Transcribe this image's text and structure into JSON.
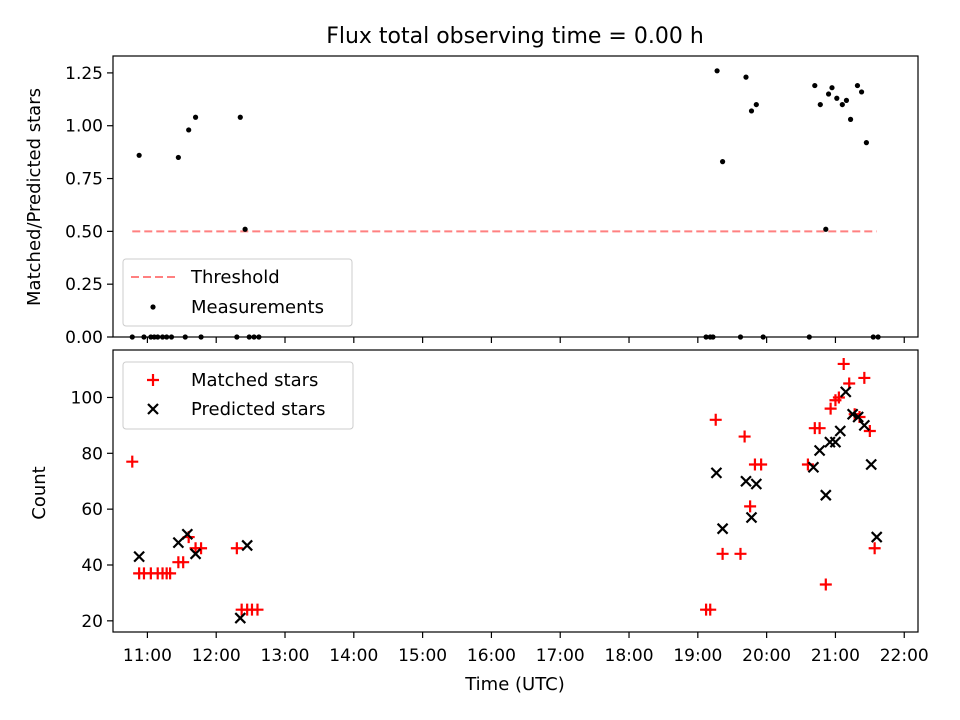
{
  "colors": {
    "threshold": "#ff8080",
    "measurement": "#000000",
    "matched": "#ff0000",
    "predicted": "#000000",
    "axis": "#000000",
    "legend_border": "#cccccc"
  },
  "chart_data": [
    {
      "type": "scatter",
      "title": "Flux total observing time = 0.00 h",
      "xlabel": "",
      "ylabel": "Matched/Predicted stars",
      "xlim": [
        10.5,
        22.2
      ],
      "ylim": [
        0,
        1.33
      ],
      "yticks": [
        0.0,
        0.25,
        0.5,
        0.75,
        1.0,
        1.25
      ],
      "ytick_labels": [
        "0.00",
        "0.25",
        "0.50",
        "0.75",
        "1.00",
        "1.25"
      ],
      "legend_position": "lower-left",
      "series": [
        {
          "name": "Threshold",
          "style": "dashed-line",
          "x": [
            10.78,
            21.6
          ],
          "y": [
            0.5,
            0.5
          ]
        },
        {
          "name": "Measurements",
          "style": "dots",
          "x": [
            10.78,
            10.88,
            10.95,
            11.05,
            11.1,
            11.15,
            11.22,
            11.28,
            11.35,
            11.45,
            11.55,
            11.6,
            11.7,
            11.78,
            12.3,
            12.35,
            12.42,
            12.48,
            12.55,
            12.62,
            19.12,
            19.18,
            19.22,
            19.28,
            19.36,
            19.62,
            19.7,
            19.78,
            19.85,
            19.95,
            20.62,
            20.7,
            20.78,
            20.86,
            20.9,
            20.95,
            21.02,
            21.1,
            21.16,
            21.22,
            21.32,
            21.38,
            21.45,
            21.55,
            21.62
          ],
          "y": [
            0.0,
            0.86,
            0.0,
            0.0,
            0.0,
            0.0,
            0.0,
            0.0,
            0.0,
            0.85,
            0.0,
            0.98,
            1.04,
            0.0,
            0.0,
            1.04,
            0.51,
            0.0,
            0.0,
            0.0,
            0.0,
            0.0,
            0.0,
            1.26,
            0.83,
            0.0,
            1.23,
            1.07,
            1.1,
            0.0,
            0.0,
            1.19,
            1.1,
            0.51,
            1.15,
            1.18,
            1.13,
            1.1,
            1.12,
            1.03,
            1.19,
            1.16,
            0.92,
            0.0,
            0.0
          ]
        }
      ]
    },
    {
      "type": "scatter",
      "title": "",
      "xlabel": "Time (UTC)",
      "ylabel": "Count",
      "xlim": [
        10.5,
        22.2
      ],
      "ylim": [
        16,
        117
      ],
      "yticks": [
        20,
        40,
        60,
        80,
        100
      ],
      "ytick_labels": [
        "20",
        "40",
        "60",
        "80",
        "100"
      ],
      "xticks": [
        11,
        12,
        13,
        14,
        15,
        16,
        17,
        18,
        19,
        20,
        21,
        22
      ],
      "xtick_labels": [
        "11:00",
        "12:00",
        "13:00",
        "14:00",
        "15:00",
        "16:00",
        "17:00",
        "18:00",
        "19:00",
        "20:00",
        "21:00",
        "22:00"
      ],
      "legend_position": "upper-left",
      "series": [
        {
          "name": "Matched stars",
          "marker": "plus",
          "x": [
            10.78,
            10.88,
            10.95,
            11.05,
            11.15,
            11.22,
            11.28,
            11.33,
            11.45,
            11.52,
            11.6,
            11.7,
            11.78,
            12.3,
            12.37,
            12.45,
            12.52,
            12.6,
            19.12,
            19.18,
            19.26,
            19.36,
            19.62,
            19.68,
            19.76,
            19.83,
            19.92,
            20.6,
            20.7,
            20.77,
            20.86,
            20.93,
            21.0,
            21.05,
            21.12,
            21.2,
            21.28,
            21.35,
            21.42,
            21.5,
            21.57
          ],
          "y": [
            77,
            37,
            37,
            37,
            37,
            37,
            37,
            37,
            41,
            41,
            50,
            46,
            46,
            46,
            24,
            24,
            24,
            24,
            24,
            24,
            92,
            44,
            44,
            86,
            61,
            76,
            76,
            76,
            89,
            89,
            33,
            96,
            99,
            100,
            112,
            105,
            94,
            93,
            107,
            88,
            46
          ]
        },
        {
          "name": "Predicted stars",
          "marker": "x",
          "x": [
            10.88,
            11.45,
            11.58,
            11.7,
            12.35,
            12.45,
            19.27,
            19.36,
            19.7,
            19.78,
            19.85,
            20.68,
            20.77,
            20.86,
            20.92,
            21.0,
            21.07,
            21.15,
            21.25,
            21.33,
            21.42,
            21.52,
            21.6
          ],
          "y": [
            43,
            48,
            51,
            44,
            21,
            47,
            73,
            53,
            70,
            57,
            69,
            75,
            81,
            65,
            84,
            84,
            88,
            102,
            94,
            93,
            90,
            76,
            50
          ]
        }
      ]
    }
  ]
}
